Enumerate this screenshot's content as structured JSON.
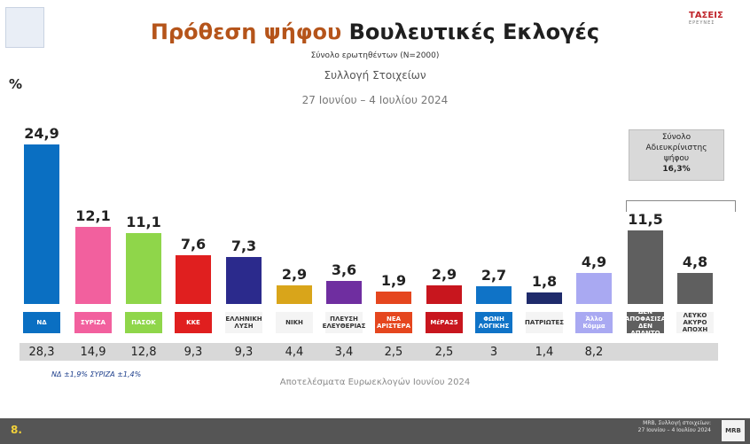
{
  "header": {
    "title_part1": "Πρόθεση ψήφου",
    "title_part2": "Βουλευτικές Εκλογές",
    "subtitle": "Σύνολο ερωτηθέντων (N=2000)",
    "collection": "Συλλογή Στοιχείων",
    "period": "27 Ιουνίου – 4 Ιουλίου 2024",
    "unit": "%",
    "logo": "ΤΑΣΕΙΣ",
    "logo_sub": "ΕΡΕΥΝΕΣ"
  },
  "chart_data": {
    "type": "bar",
    "categories": [
      "ΝΔ",
      "ΣΥΡΙΖΑ",
      "ΠΑΣΟΚ",
      "ΚΚΕ",
      "ΕΛΛΗΝΙΚΗ ΛΥΣΗ",
      "ΝΙΚΗ",
      "ΠΛΕΥΣΗ ΕΛΕΥΘΕΡΙΑΣ",
      "ΝΕΑ ΑΡΙΣΤΕΡΑ",
      "ΜέΡΑ25",
      "ΦΩΝΗ ΛΟΓΙΚΗΣ",
      "ΠΑΤΡΙΩΤΕΣ",
      "Άλλο Κόμμα",
      "ΔΕΝ ΑΠΟΦΑΣΙΣΑ / ΔΕΝ ΑΠΑΝΤΩ",
      "ΛΕΥΚΟ / ΑΚΥΡΟ / ΑΠΟΧΗ"
    ],
    "values": [
      24.9,
      12.1,
      11.1,
      7.6,
      7.3,
      2.9,
      3.6,
      1.9,
      2.9,
      2.7,
      1.8,
      4.9,
      11.5,
      4.8
    ],
    "value_labels": [
      "24,9",
      "12,1",
      "11,1",
      "7,6",
      "7,3",
      "2,9",
      "3,6",
      "1,9",
      "2,9",
      "2,7",
      "1,8",
      "4,9",
      "11,5",
      "4,8"
    ],
    "colors": [
      "#0a6fc2",
      "#f2609e",
      "#8fd64a",
      "#e01f1f",
      "#2b2a8c",
      "#d9a51a",
      "#6f2ea0",
      "#e5461e",
      "#c8161e",
      "#0f73c7",
      "#1f2b6b",
      "#a9a9f2",
      "#5f5f5f",
      "#5f5f5f"
    ],
    "party_labels": [
      "ΝΔ",
      "ΣΥΡΙΖΑ",
      "ΠΑΣΟΚ",
      "ΚΚΕ",
      "ΕΛΛΗΝΙΚΗ ΛΥΣΗ",
      "ΝΙΚΗ",
      "ΠΛΕΥΣΗ ΕΛΕΥΘΕΡΙΑΣ",
      "ΝΕΑ ΑΡΙΣΤΕΡΑ",
      "ΜέΡΑ25",
      "ΦΩΝΗ ΛΟΓΙΚΗΣ",
      "ΠΑΤΡΙΩΤΕΣ",
      "Άλλο Κόμμα",
      "ΔΕΝ ΑΠΟΦΑΣΙΣΑ ΔΕΝ ΑΠΑΝΤΩ",
      "ΛΕΥΚΟ ΑΚΥΡΟ ΑΠΟΧΗ"
    ],
    "ylim": [
      0,
      26
    ],
    "euro_results": [
      "28,3",
      "14,9",
      "12,8",
      "9,3",
      "9,3",
      "4,4",
      "3,4",
      "2,5",
      "2,5",
      "3",
      "1,4",
      "8,2"
    ],
    "euro_label": "Αποτελέσματα Ευρωεκλογών Ιουνίου 2024",
    "note": "ΝΔ ±1,9% ΣΥΡΙΖΑ ±1,4%",
    "undecided_box": {
      "line1": "Σύνολο",
      "line2": "Αδιευκρίνιστης",
      "line3": "ψήφου",
      "value": "16,3%"
    }
  },
  "footer": {
    "page": "8.",
    "source_line1": "MRB, Συλλογή στοιχείων:",
    "source_line2": "27 Ιουνίου – 4 Ιουλίου 2024",
    "brand": "MRB"
  }
}
